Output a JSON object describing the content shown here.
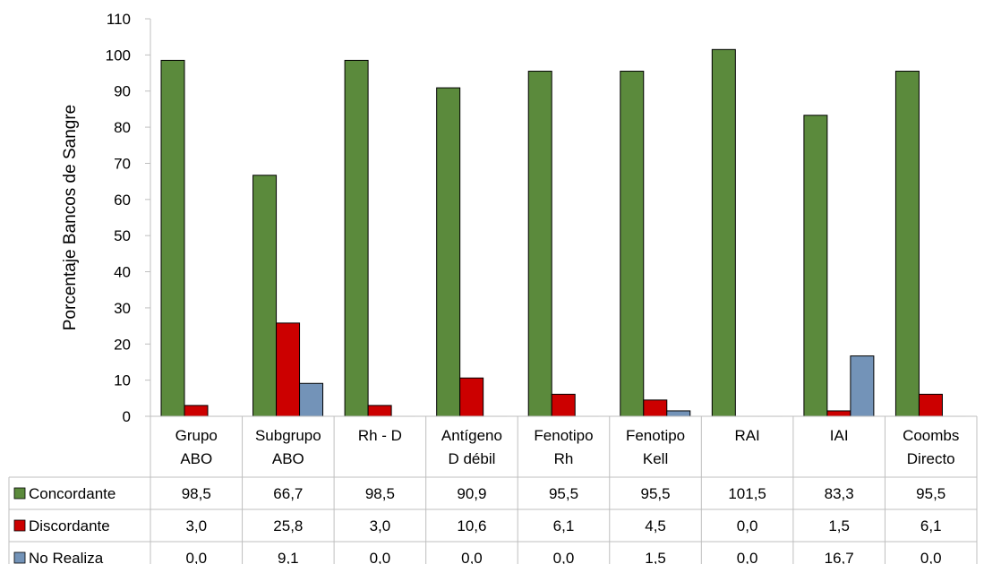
{
  "chart_data": {
    "type": "bar",
    "ylabel": "Porcentaje Bancos de Sangre",
    "ylim": [
      0,
      110
    ],
    "yticks": [
      0,
      10,
      20,
      30,
      40,
      50,
      60,
      70,
      80,
      90,
      100,
      110
    ],
    "categories": [
      [
        "Grupo",
        "ABO"
      ],
      [
        "Subgrupo",
        "ABO"
      ],
      [
        "Rh - D"
      ],
      [
        "Antígeno",
        "D débil"
      ],
      [
        "Fenotipo",
        "Rh"
      ],
      [
        "Fenotipo",
        "Kell"
      ],
      [
        "RAI"
      ],
      [
        "IAI"
      ],
      [
        "Coombs",
        "Directo"
      ]
    ],
    "series": [
      {
        "name": "Concordante",
        "color": "#5b8a3c",
        "values": [
          98.5,
          66.7,
          98.5,
          90.9,
          95.5,
          95.5,
          101.5,
          83.3,
          95.5
        ],
        "labels": [
          "98,5",
          "66,7",
          "98,5",
          "90,9",
          "95,5",
          "95,5",
          "101,5",
          "83,3",
          "95,5"
        ]
      },
      {
        "name": "Discordante",
        "color": "#cc0000",
        "values": [
          3.0,
          25.8,
          3.0,
          10.6,
          6.1,
          4.5,
          0.0,
          1.5,
          6.1
        ],
        "labels": [
          "3,0",
          "25,8",
          "3,0",
          "10,6",
          "6,1",
          "4,5",
          "0,0",
          "1,5",
          "6,1"
        ]
      },
      {
        "name": "No Realiza",
        "color": "#7393b8",
        "values": [
          0.0,
          9.1,
          0.0,
          0.0,
          0.0,
          1.5,
          0.0,
          16.7,
          0.0
        ],
        "labels": [
          "0,0",
          "9,1",
          "0,0",
          "0,0",
          "0,0",
          "1,5",
          "0,0",
          "16,7",
          "0,0"
        ]
      }
    ],
    "legend": "data-table",
    "grid": false
  }
}
